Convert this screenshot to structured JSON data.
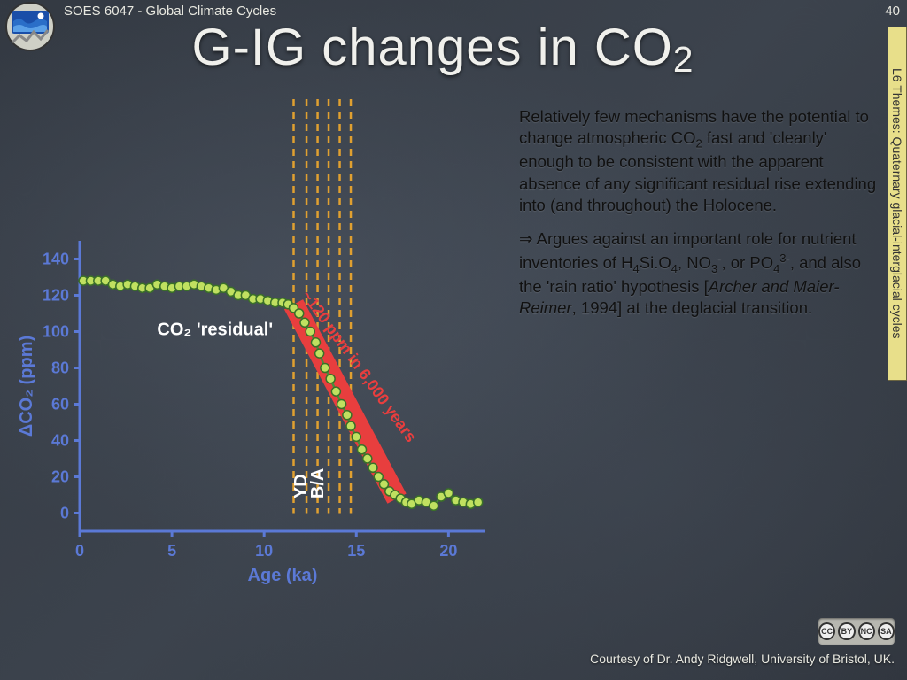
{
  "header": {
    "course": "SOES 6047 - Global Climate Cycles",
    "slide_number": "40"
  },
  "title_pre": "G-IG changes in CO",
  "title_sub": "2",
  "side_tab": "L6 Themes: Quaternary glacial-interglacial cycles",
  "body": {
    "p1_a": "Relatively few mechanisms have the potential to change atmospheric CO",
    "p1_b": " fast and 'cleanly' enough to be consistent with the apparent absence of any significant residual rise extending into (and throughout) the Holocene.",
    "co2_sub": "2",
    "p2_arrow": "⇒ ",
    "p2_a": "Argues against an important role for nutrient inventories of H",
    "h4sio4": "4",
    "p2_mid1": "Si.O",
    "sio4_sub": "4",
    "p2_b": ", NO",
    "no3_sub": "3",
    "no3_sup": "-",
    "p2_c": ", or PO",
    "po4_sub": "4",
    "po4_sup": "3-",
    "p2_d": ", and also the 'rain ratio' hypothesis [",
    "p2_ref": "Archer and Maier-Reimer",
    "p2_e": ", 1994] at the deglacial transition."
  },
  "chart": {
    "type": "scatter-line",
    "xlabel": "Age (ka)",
    "ylabel": "ΔCO₂ (ppm)",
    "xlim": [
      0,
      22
    ],
    "ylim": [
      -10,
      150
    ],
    "xticks": [
      0,
      5,
      10,
      15,
      20
    ],
    "yticks": [
      0,
      20,
      40,
      60,
      80,
      100,
      120,
      140
    ],
    "line_color": "#4a8c3a",
    "marker_fill": "#c0e060",
    "marker_stroke": "#3a7028",
    "marker_size": 5,
    "axis_color": "#5b79d6",
    "dashed_vlines_x": [
      11.6,
      12.3,
      12.9,
      13.5,
      14.1,
      14.7
    ],
    "dashed_color": "#e0a030",
    "red_band_color": "#e83e3e",
    "label_residual": "CO₂ 'residual'",
    "label_ppm_annot": "~120 ppm in 6,000 years",
    "label_yd": "YD",
    "label_ba": "B/A",
    "data_x": [
      0.2,
      0.6,
      1.0,
      1.4,
      1.8,
      2.2,
      2.6,
      3.0,
      3.4,
      3.8,
      4.2,
      4.6,
      5.0,
      5.4,
      5.8,
      6.2,
      6.6,
      7.0,
      7.4,
      7.8,
      8.2,
      8.6,
      9.0,
      9.4,
      9.8,
      10.2,
      10.6,
      11.0,
      11.3,
      11.6,
      11.9,
      12.2,
      12.5,
      12.8,
      13.0,
      13.3,
      13.6,
      13.9,
      14.2,
      14.5,
      14.7,
      15.0,
      15.3,
      15.6,
      15.9,
      16.2,
      16.5,
      16.8,
      17.1,
      17.4,
      17.7,
      18.0,
      18.4,
      18.8,
      19.2,
      19.6,
      20.0,
      20.4,
      20.8,
      21.2,
      21.6
    ],
    "data_y": [
      128,
      128,
      128,
      128,
      126,
      125,
      126,
      125,
      124,
      124,
      126,
      125,
      124,
      125,
      125,
      126,
      125,
      124,
      123,
      124,
      122,
      120,
      120,
      118,
      118,
      117,
      116,
      116,
      115,
      113,
      110,
      105,
      100,
      94,
      88,
      80,
      74,
      67,
      60,
      54,
      48,
      42,
      35,
      30,
      25,
      20,
      16,
      12,
      10,
      8,
      6,
      5,
      7,
      6,
      4,
      9,
      11,
      7,
      6,
      5,
      6
    ]
  },
  "footer": {
    "courtesy": "Courtesy of Dr. Andy Ridgwell, University of Bristol, UK.",
    "cc_labels": [
      "CC",
      "BY",
      "NC",
      "SA"
    ]
  },
  "colors": {
    "chalkboard": "#3a4048",
    "side_tab_bg": "#e8df8a",
    "title_color": "#f0f0ec",
    "body_text": "#111"
  }
}
